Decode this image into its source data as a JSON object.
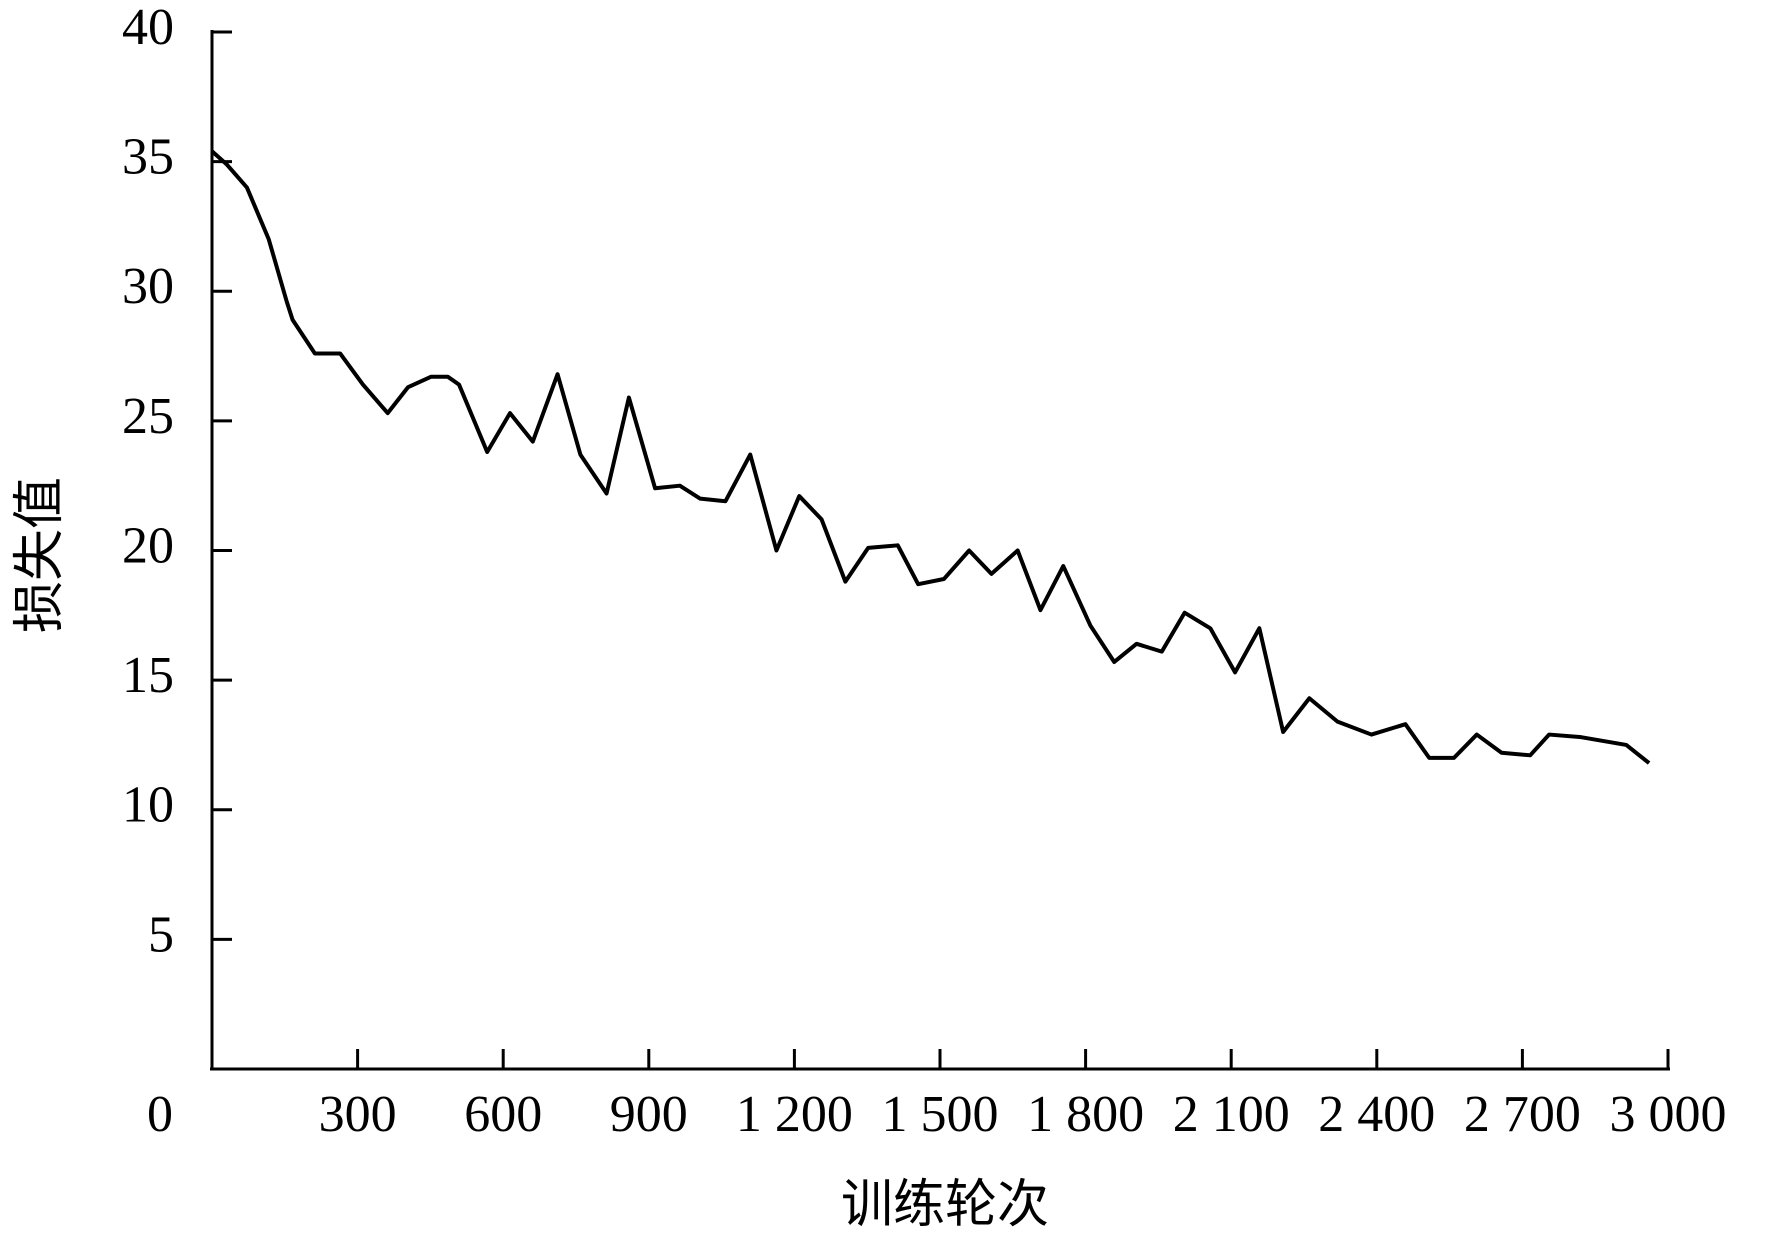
{
  "chart_data": {
    "type": "line",
    "x_label": "训练轮次",
    "y_label": "损失值",
    "x": [
      0,
      30,
      72,
      117,
      154,
      166,
      212,
      264,
      311,
      362,
      404,
      451,
      486,
      509,
      567,
      614,
      661,
      712,
      759,
      813,
      859,
      913,
      964,
      1006,
      1058,
      1109,
      1163,
      1210,
      1256,
      1305,
      1352,
      1413,
      1455,
      1508,
      1560,
      1606,
      1660,
      1707,
      1754,
      1810,
      1859,
      1905,
      1957,
      2004,
      2057,
      2108,
      2158,
      2207,
      2261,
      2319,
      2389,
      2459,
      2508,
      2559,
      2606,
      2657,
      2716,
      2755,
      2821,
      2914,
      2961
    ],
    "series": [
      {
        "color": "#000000",
        "values": [
          35.4,
          34.9,
          34.0,
          32.0,
          29.6,
          28.9,
          27.6,
          27.6,
          26.4,
          25.3,
          26.3,
          26.7,
          26.7,
          26.4,
          23.8,
          25.3,
          24.2,
          26.8,
          23.7,
          22.2,
          25.9,
          22.4,
          22.5,
          22.0,
          21.9,
          23.7,
          20.0,
          22.1,
          21.2,
          18.8,
          20.1,
          20.2,
          18.7,
          18.9,
          20.0,
          19.1,
          20.0,
          17.7,
          19.4,
          17.1,
          15.7,
          16.4,
          16.1,
          17.6,
          17.0,
          15.3,
          17.0,
          13.0,
          14.3,
          13.4,
          12.9,
          13.3,
          12.0,
          12.0,
          12.9,
          12.2,
          12.1,
          12.9,
          12.8,
          12.5,
          11.8
        ]
      }
    ],
    "xlim": [
      0,
      3000
    ],
    "ylim": [
      0,
      40
    ],
    "xticks": [
      0,
      300,
      600,
      900,
      {
        "value": 1200,
        "label": "1 200"
      },
      {
        "value": 1500,
        "label": "1 500"
      },
      {
        "value": 1800,
        "label": "1 800"
      },
      {
        "value": 2100,
        "label": "2 100"
      },
      {
        "value": 2400,
        "label": "2 400"
      },
      {
        "value": 2700,
        "label": "2 700"
      },
      {
        "value": 3000,
        "label": "3 000"
      }
    ],
    "yticks": [
      5,
      10,
      15,
      20,
      25,
      30,
      35,
      40
    ],
    "grid": false
  }
}
